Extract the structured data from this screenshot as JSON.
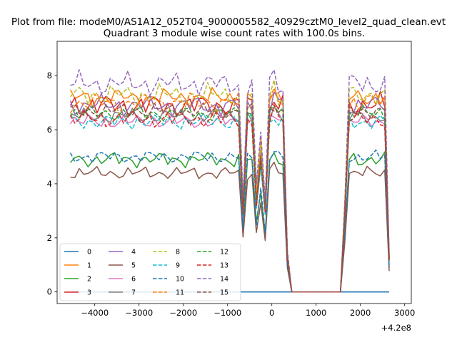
{
  "figure": {
    "suptitle": "Plot from file: modeM0/AS1A12_052T04_9000005582_40929cztM0_level2_quad_clean.evt",
    "title": "Quadrant 3 module wise count rates with 100.0s bins.",
    "offset_label": "+4.2e8"
  },
  "chart_data": {
    "type": "line",
    "title": "Quadrant 3 module wise count rates with 100.0s bins.",
    "xlabel": "",
    "ylabel": "",
    "x_offset": 420000000,
    "xlim": [
      -4850,
      3150
    ],
    "ylim": [
      -0.43,
      9.27
    ],
    "xticks": [
      -4000,
      -3000,
      -2000,
      -1000,
      0,
      1000,
      2000,
      3000
    ],
    "xtick_labels": [
      "−4000",
      "−3000",
      "−2000",
      "−1000",
      "0",
      "1000",
      "2000",
      "3000"
    ],
    "yticks": [
      0,
      2,
      4,
      6,
      8
    ],
    "ytick_labels": [
      "0",
      "2",
      "4",
      "6",
      "8"
    ],
    "grid": false,
    "legend_position": "lower-left",
    "segments": [
      {
        "x": [
          -4550,
          -4450,
          -4350,
          -4250,
          -4150,
          -4050,
          -3950,
          -3850,
          -3750,
          -3650,
          -3550,
          -3450,
          -3350,
          -3250,
          -3150,
          -3050,
          -2950,
          -2850,
          -2750,
          -2650,
          -2550,
          -2450,
          -2350,
          -2250,
          -2150,
          -2050,
          -1950,
          -1850,
          -1750,
          -1650,
          -1550,
          -1450,
          -1350,
          -1250,
          -1150,
          -1050,
          -950,
          -850
        ]
      },
      {
        "x": [
          -750,
          -650,
          -550,
          -450,
          -350,
          -250,
          -150,
          -50,
          50,
          150,
          250,
          350
        ]
      },
      {
        "x": [
          450,
          550,
          650,
          750,
          850,
          950,
          1050,
          1150,
          1250,
          1350,
          1450,
          1550
        ]
      },
      {
        "x": [
          1650,
          1750,
          1850,
          1950,
          2050,
          2150,
          2250,
          2350,
          2450,
          2550,
          2650
        ]
      }
    ],
    "series": [
      {
        "name": "0",
        "color": "#1f77b4",
        "dash": false,
        "base": 0.0,
        "amp": 0.0
      },
      {
        "name": "1",
        "color": "#ff7f0e",
        "dash": false,
        "base": 7.2,
        "amp": 0.35
      },
      {
        "name": "2",
        "color": "#2ca02c",
        "dash": false,
        "base": 4.9,
        "amp": 0.3
      },
      {
        "name": "3",
        "color": "#d62728",
        "dash": false,
        "base": 6.9,
        "amp": 0.45
      },
      {
        "name": "4",
        "color": "#9467bd",
        "dash": false,
        "base": 6.9,
        "amp": 0.4
      },
      {
        "name": "5",
        "color": "#8c564b",
        "dash": false,
        "base": 4.4,
        "amp": 0.25
      },
      {
        "name": "6",
        "color": "#e377c2",
        "dash": false,
        "base": 6.3,
        "amp": 0.3
      },
      {
        "name": "7",
        "color": "#7f7f7f",
        "dash": false,
        "base": 6.5,
        "amp": 0.3
      },
      {
        "name": "8",
        "color": "#bcbd22",
        "dash": true,
        "base": 7.3,
        "amp": 0.4
      },
      {
        "name": "9",
        "color": "#17becf",
        "dash": true,
        "base": 6.3,
        "amp": 0.3
      },
      {
        "name": "10",
        "color": "#1f77b4",
        "dash": true,
        "base": 5.0,
        "amp": 0.25
      },
      {
        "name": "11",
        "color": "#ff7f0e",
        "dash": true,
        "base": 7.0,
        "amp": 0.4
      },
      {
        "name": "12",
        "color": "#2ca02c",
        "dash": true,
        "base": 6.6,
        "amp": 0.3
      },
      {
        "name": "13",
        "color": "#d62728",
        "dash": true,
        "base": 6.4,
        "amp": 0.35
      },
      {
        "name": "14",
        "color": "#9467bd",
        "dash": true,
        "base": 7.7,
        "amp": 0.45
      },
      {
        "name": "15",
        "color": "#8c564b",
        "dash": true,
        "base": 6.7,
        "amp": 0.3
      }
    ],
    "profile_notes": "rates fall to about 0 between x ≈ 450 and x ≈ 1550; series 0 stays at 0"
  }
}
